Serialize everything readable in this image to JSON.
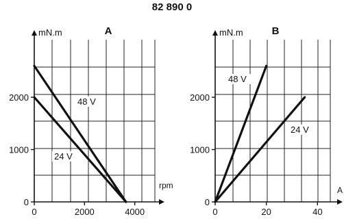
{
  "title": "82 890 0",
  "chart_data": [
    {
      "panel": "A",
      "type": "line",
      "ylabel": "mN.m",
      "xlabel": "rpm",
      "xlim": [
        0,
        4800
      ],
      "ylim": [
        0,
        3100
      ],
      "x_ticks": [
        "0",
        "2000",
        "4000"
      ],
      "x_tick_values": [
        0,
        2000,
        4000
      ],
      "y_ticks": [
        "0",
        "1000",
        "2000"
      ],
      "y_tick_values": [
        0,
        1000,
        2000
      ],
      "grid": true,
      "series": [
        {
          "name": "48 V",
          "x": [
            0,
            3650
          ],
          "y": [
            2600,
            0
          ]
        },
        {
          "name": "24 V",
          "x": [
            0,
            3650
          ],
          "y": [
            2000,
            0
          ]
        }
      ]
    },
    {
      "panel": "B",
      "type": "line",
      "ylabel": "mN.m",
      "xlabel": "A",
      "xlim": [
        0,
        45
      ],
      "ylim": [
        0,
        3100
      ],
      "x_ticks": [
        "0",
        "20",
        "40"
      ],
      "x_tick_values": [
        0,
        20,
        40
      ],
      "y_ticks": [
        "0",
        "1000",
        "2000"
      ],
      "y_tick_values": [
        0,
        1000,
        2000
      ],
      "grid": true,
      "series": [
        {
          "name": "48 V",
          "x": [
            0,
            20
          ],
          "y": [
            0,
            2600
          ]
        },
        {
          "name": "24 V",
          "x": [
            0,
            35
          ],
          "y": [
            0,
            2000
          ]
        }
      ]
    }
  ]
}
